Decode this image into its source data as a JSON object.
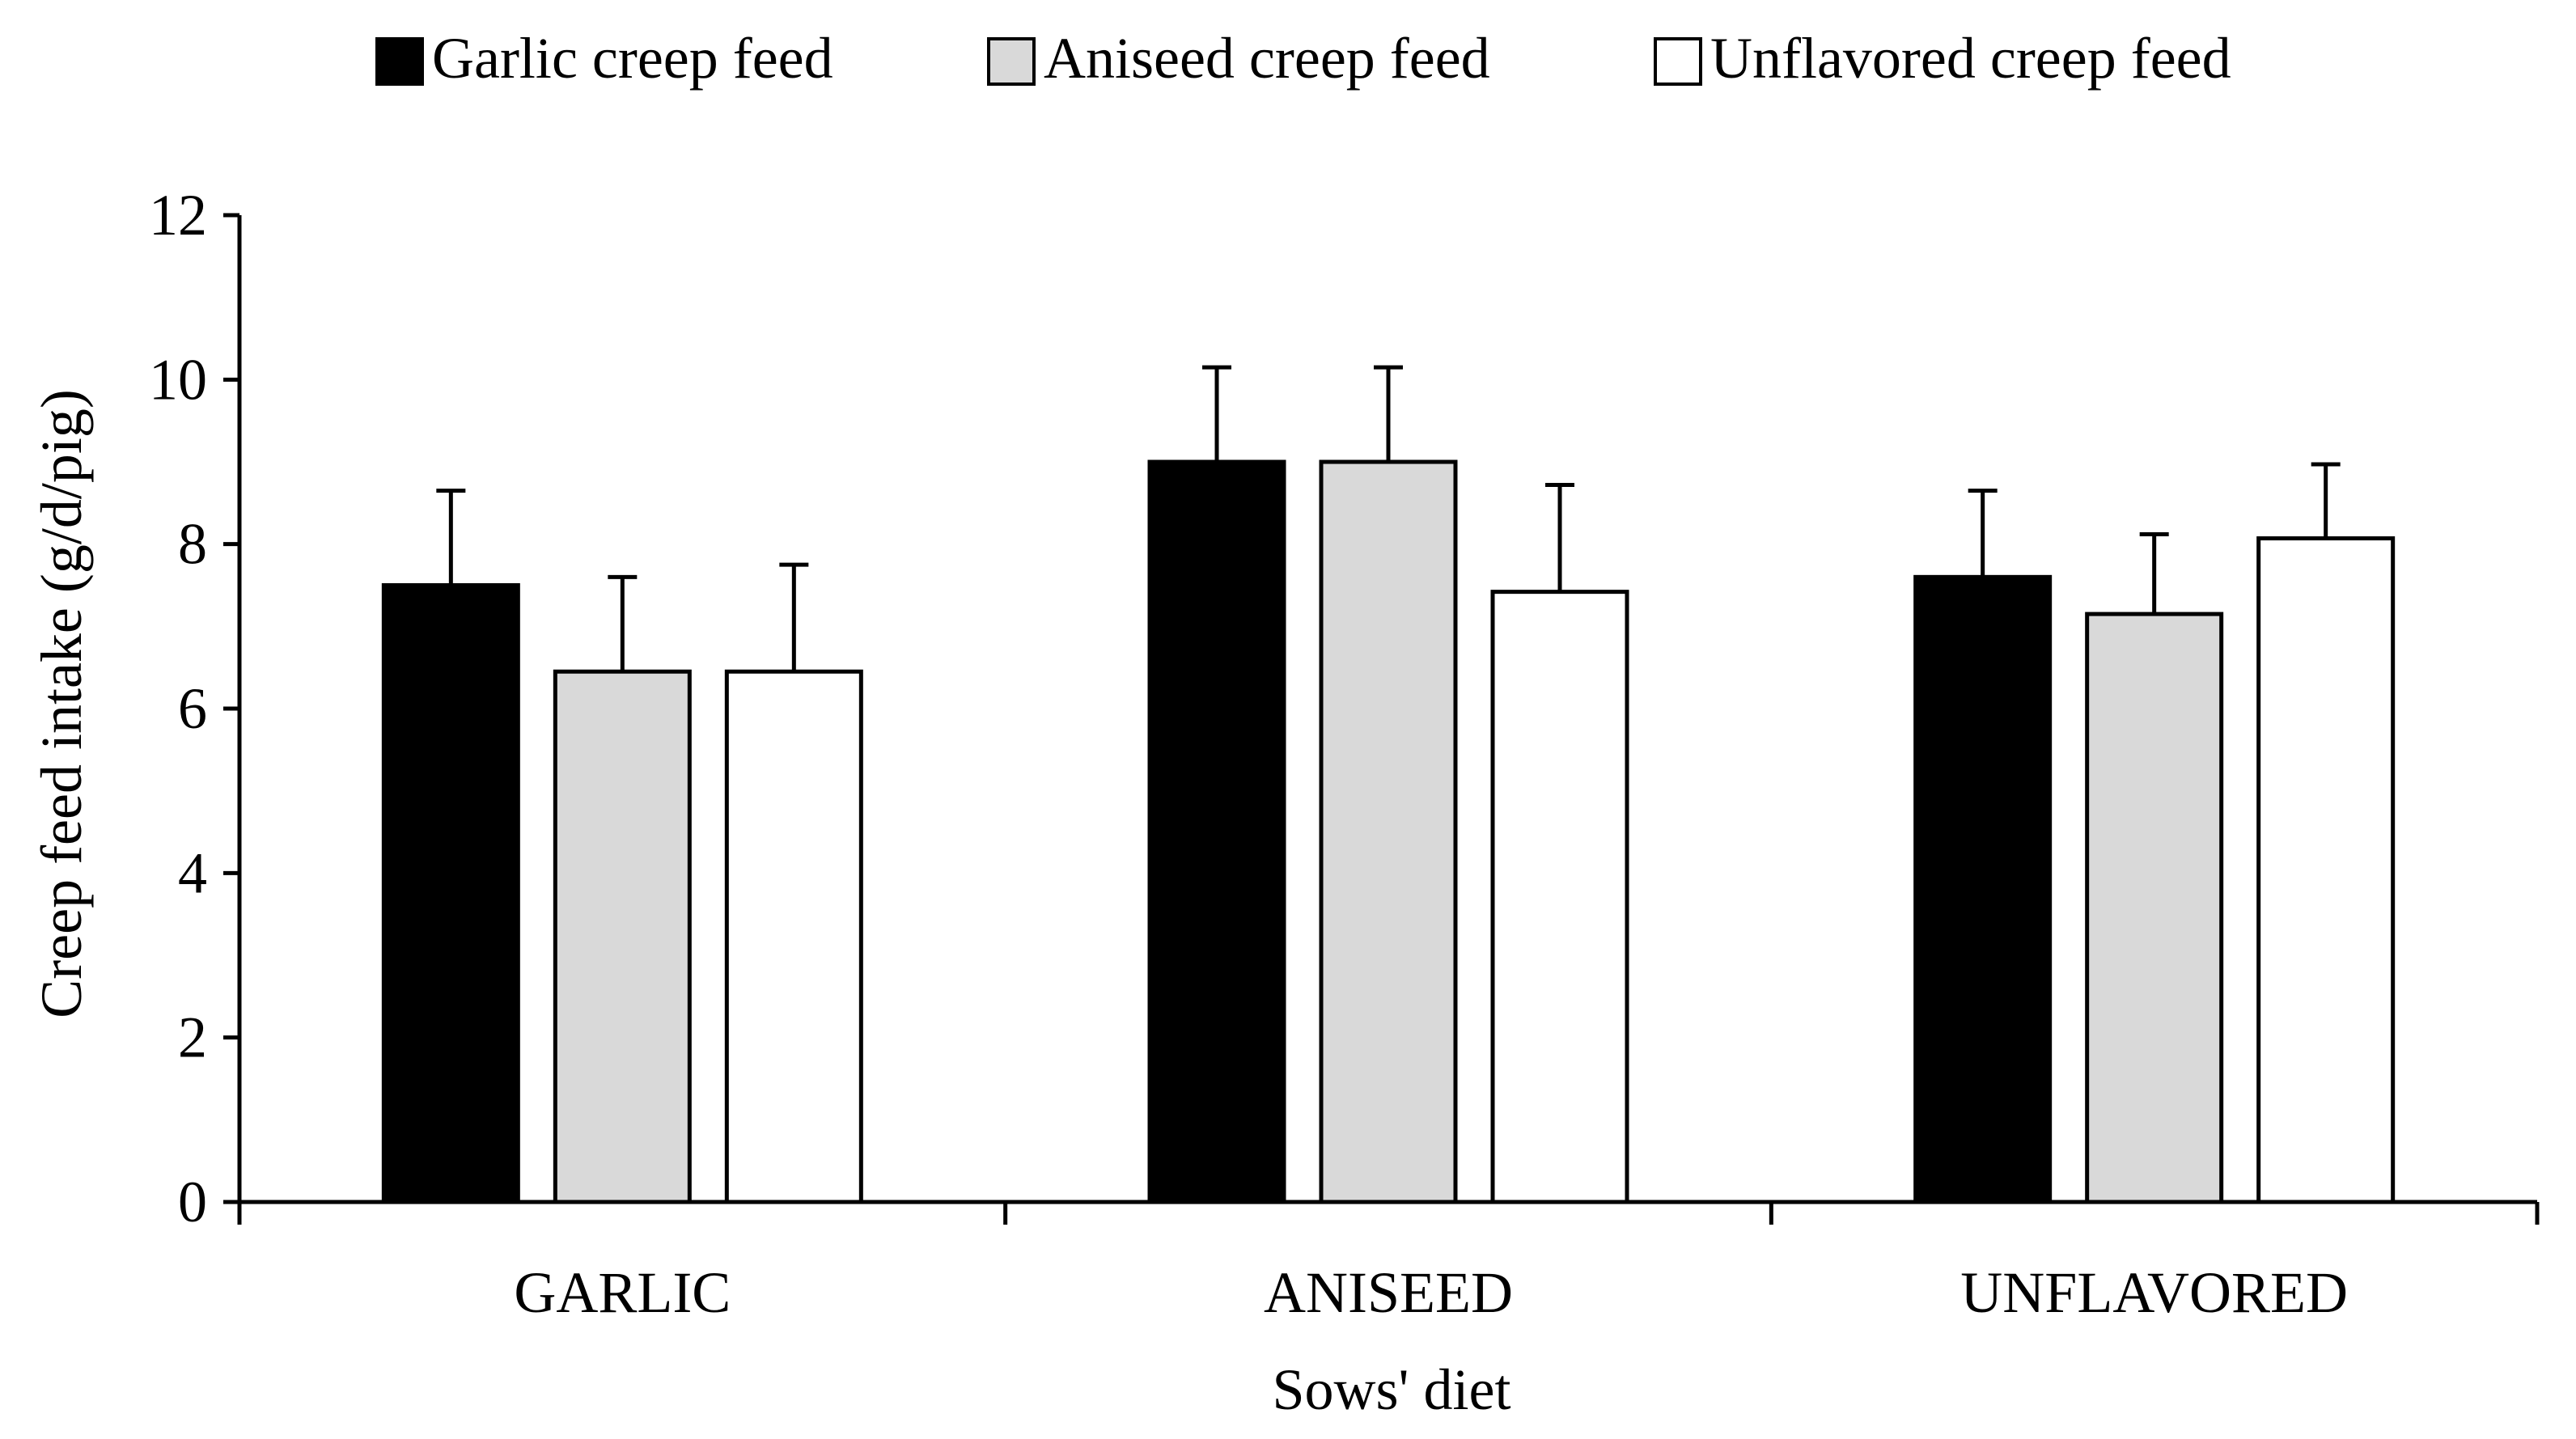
{
  "chart_data": {
    "type": "bar",
    "title": "",
    "xlabel": "Sows' diet",
    "ylabel": "Creep feed intake (g/d/pig)",
    "ylim": [
      0,
      12
    ],
    "yticks": [
      "0",
      "2",
      "4",
      "6",
      "8",
      "10",
      "12"
    ],
    "categories": [
      "GARLIC",
      "ANISEED",
      "UNFLAVORED"
    ],
    "legend_position": "top-center",
    "grid": false,
    "series": [
      {
        "name": "Garlic creep feed",
        "color": "#000000",
        "values": [
          7.5,
          9.0,
          7.6
        ],
        "errors": [
          1.15,
          1.15,
          1.05
        ]
      },
      {
        "name": "Aniseed creep feed",
        "color": "#d9d9d9",
        "values": [
          6.45,
          9.0,
          7.15
        ],
        "errors": [
          1.15,
          1.15,
          0.97
        ]
      },
      {
        "name": "Unflavored creep feed",
        "color": "#ffffff",
        "values": [
          6.45,
          7.42,
          8.07
        ],
        "errors": [
          1.3,
          1.3,
          0.9
        ]
      }
    ]
  }
}
